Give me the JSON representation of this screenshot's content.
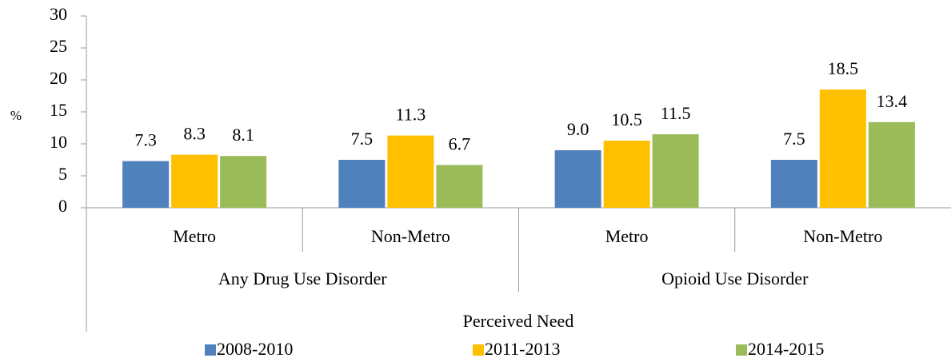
{
  "chart_data": {
    "type": "bar",
    "y_label": "%",
    "x_label": "Perceived Need",
    "categories": [
      "Metro",
      "Non-Metro",
      "Metro",
      "Non-Metro"
    ],
    "groups": [
      {
        "name": "Any Drug Use Disorder",
        "span": 2
      },
      {
        "name": "Opioid Use Disorder",
        "span": 2
      }
    ],
    "series": [
      {
        "name": "2008-2010",
        "color": "#4f81bd",
        "values": [
          7.3,
          7.5,
          9.0,
          7.5
        ],
        "value_labels": [
          "7.3",
          "7.5",
          "9.0",
          "7.5"
        ]
      },
      {
        "name": "2011-2013",
        "color": "#ffc000",
        "values": [
          8.3,
          11.3,
          10.5,
          18.5
        ],
        "value_labels": [
          "8.3",
          "11.3",
          "10.5",
          "18.5"
        ]
      },
      {
        "name": "2014-2015",
        "color": "#9bbb59",
        "values": [
          8.1,
          6.7,
          11.5,
          13.4
        ],
        "value_labels": [
          "8.1",
          "6.7",
          "11.5",
          "13.4"
        ]
      }
    ],
    "ylim": [
      0,
      30
    ],
    "yticks": [
      0,
      5,
      10,
      15,
      20,
      25,
      30
    ],
    "legend": "bottom"
  }
}
